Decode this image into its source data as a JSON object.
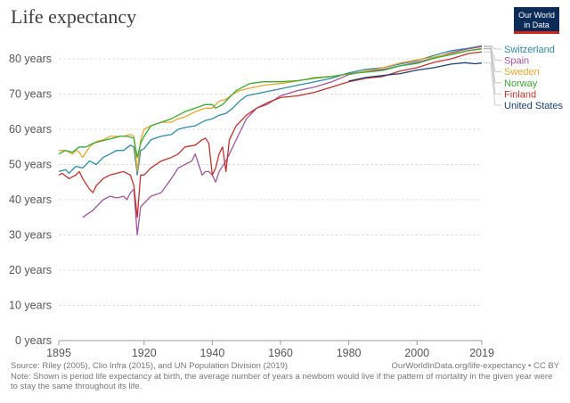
{
  "title": "Life expectancy",
  "logo": {
    "line1": "Our World",
    "line2": "in Data"
  },
  "footer": {
    "source": "Source: Riley (2005), Clio Infra (2015), and UN Population Division (2019)",
    "url": "OurWorldInData.org/life-expectancy • CC BY",
    "note": "Note: Shown is period life expectancy at birth, the average number of years a newborn would live if the pattern of mortality in the given year were to stay the same throughout its life."
  },
  "chart_data": {
    "type": "line",
    "title": "Life expectancy",
    "xlabel": "",
    "ylabel": "",
    "xlim": [
      1895,
      2019
    ],
    "ylim": [
      0,
      80
    ],
    "x_ticks": [
      1895,
      1920,
      1940,
      1960,
      1980,
      2000,
      2019
    ],
    "x_tick_labels": [
      "1895",
      "1920",
      "1940",
      "1960",
      "1980",
      "2000",
      "2019"
    ],
    "y_ticks": [
      0,
      10,
      20,
      30,
      40,
      50,
      60,
      70,
      80
    ],
    "y_tick_labels": [
      "0 years",
      "10 years",
      "20 years",
      "30 years",
      "40 years",
      "50 years",
      "60 years",
      "70 years",
      "80 years"
    ],
    "grid": "horizontal dashed",
    "legend": "right",
    "series": [
      {
        "name": "Switzerland",
        "color": "#2d8aa8",
        "points": [
          [
            1895,
            48
          ],
          [
            1897,
            48.5
          ],
          [
            1898,
            47.5
          ],
          [
            1900,
            49.5
          ],
          [
            1902,
            49
          ],
          [
            1904,
            51
          ],
          [
            1906,
            50
          ],
          [
            1908,
            52
          ],
          [
            1910,
            53
          ],
          [
            1912,
            54
          ],
          [
            1914,
            54
          ],
          [
            1916,
            55.5
          ],
          [
            1917,
            55
          ],
          [
            1918,
            47
          ],
          [
            1919,
            54
          ],
          [
            1920,
            54.5
          ],
          [
            1922,
            57
          ],
          [
            1925,
            58
          ],
          [
            1928,
            58.5
          ],
          [
            1930,
            60
          ],
          [
            1932,
            60.5
          ],
          [
            1935,
            61
          ],
          [
            1938,
            62.5
          ],
          [
            1940,
            63
          ],
          [
            1942,
            64
          ],
          [
            1944,
            64.5
          ],
          [
            1946,
            66
          ],
          [
            1948,
            68
          ],
          [
            1950,
            69.5
          ],
          [
            1955,
            70.5
          ],
          [
            1960,
            71.5
          ],
          [
            1965,
            72.5
          ],
          [
            1970,
            73.5
          ],
          [
            1975,
            74.5
          ],
          [
            1980,
            76
          ],
          [
            1985,
            77
          ],
          [
            1990,
            77.5
          ],
          [
            1995,
            78.5
          ],
          [
            2000,
            79.5
          ],
          [
            2005,
            81
          ],
          [
            2010,
            82.3
          ],
          [
            2015,
            83
          ],
          [
            2019,
            83.7
          ]
        ]
      },
      {
        "name": "Spain",
        "color": "#a2559c",
        "points": [
          [
            1902,
            35
          ],
          [
            1905,
            37
          ],
          [
            1908,
            40
          ],
          [
            1910,
            41
          ],
          [
            1912,
            40.5
          ],
          [
            1914,
            41
          ],
          [
            1915,
            40
          ],
          [
            1916,
            42
          ],
          [
            1917,
            43
          ],
          [
            1918,
            30
          ],
          [
            1919,
            38
          ],
          [
            1920,
            39
          ],
          [
            1922,
            41
          ],
          [
            1925,
            42
          ],
          [
            1928,
            46
          ],
          [
            1930,
            49
          ],
          [
            1932,
            50
          ],
          [
            1934,
            51
          ],
          [
            1935,
            53
          ],
          [
            1936,
            50
          ],
          [
            1937,
            47
          ],
          [
            1938,
            48
          ],
          [
            1939,
            48
          ],
          [
            1940,
            47
          ],
          [
            1941,
            45
          ],
          [
            1942,
            48
          ],
          [
            1944,
            51
          ],
          [
            1946,
            55
          ],
          [
            1948,
            59
          ],
          [
            1950,
            63
          ],
          [
            1953,
            66
          ],
          [
            1956,
            67
          ],
          [
            1960,
            69.5
          ],
          [
            1965,
            71
          ],
          [
            1970,
            72
          ],
          [
            1975,
            73.5
          ],
          [
            1980,
            75.5
          ],
          [
            1985,
            76.5
          ],
          [
            1990,
            77
          ],
          [
            1995,
            78
          ],
          [
            2000,
            79
          ],
          [
            2005,
            80.2
          ],
          [
            2010,
            81.8
          ],
          [
            2015,
            82.8
          ],
          [
            2019,
            83.5
          ]
        ]
      },
      {
        "name": "Sweden",
        "color": "#e5a62f",
        "points": [
          [
            1895,
            54
          ],
          [
            1897,
            54
          ],
          [
            1898,
            53.5
          ],
          [
            1899,
            53
          ],
          [
            1900,
            54
          ],
          [
            1901,
            53.5
          ],
          [
            1902,
            52
          ],
          [
            1904,
            55
          ],
          [
            1906,
            56.5
          ],
          [
            1908,
            57
          ],
          [
            1910,
            58
          ],
          [
            1912,
            58
          ],
          [
            1914,
            58
          ],
          [
            1916,
            58.5
          ],
          [
            1917,
            58
          ],
          [
            1918,
            48
          ],
          [
            1919,
            57
          ],
          [
            1920,
            60
          ],
          [
            1922,
            61
          ],
          [
            1925,
            62
          ],
          [
            1928,
            62
          ],
          [
            1930,
            63
          ],
          [
            1932,
            63.5
          ],
          [
            1935,
            65
          ],
          [
            1938,
            66
          ],
          [
            1940,
            66
          ],
          [
            1942,
            68
          ],
          [
            1944,
            68.5
          ],
          [
            1946,
            70
          ],
          [
            1948,
            71
          ],
          [
            1950,
            71.5
          ],
          [
            1955,
            72.5
          ],
          [
            1960,
            73
          ],
          [
            1965,
            73.7
          ],
          [
            1970,
            74.7
          ],
          [
            1975,
            75
          ],
          [
            1980,
            75.7
          ],
          [
            1985,
            76.5
          ],
          [
            1990,
            77.5
          ],
          [
            1995,
            78.8
          ],
          [
            2000,
            79.7
          ],
          [
            2005,
            80.5
          ],
          [
            2010,
            81.5
          ],
          [
            2015,
            82.3
          ],
          [
            2019,
            83
          ]
        ]
      },
      {
        "name": "Norway",
        "color": "#3aaa35",
        "points": [
          [
            1895,
            53
          ],
          [
            1897,
            54
          ],
          [
            1899,
            53.5
          ],
          [
            1901,
            55
          ],
          [
            1903,
            55
          ],
          [
            1905,
            56
          ],
          [
            1907,
            56.5
          ],
          [
            1909,
            57
          ],
          [
            1911,
            57.5
          ],
          [
            1913,
            58
          ],
          [
            1915,
            58
          ],
          [
            1917,
            57.5
          ],
          [
            1918,
            52
          ],
          [
            1919,
            56
          ],
          [
            1920,
            58
          ],
          [
            1922,
            61
          ],
          [
            1925,
            62
          ],
          [
            1928,
            63
          ],
          [
            1930,
            64
          ],
          [
            1932,
            65
          ],
          [
            1935,
            66
          ],
          [
            1938,
            67
          ],
          [
            1940,
            67
          ],
          [
            1941,
            66
          ],
          [
            1943,
            67
          ],
          [
            1945,
            69
          ],
          [
            1947,
            71
          ],
          [
            1949,
            72
          ],
          [
            1951,
            73
          ],
          [
            1955,
            73.5
          ],
          [
            1960,
            73.5
          ],
          [
            1965,
            73.8
          ],
          [
            1970,
            74.5
          ],
          [
            1975,
            75
          ],
          [
            1980,
            75.8
          ],
          [
            1985,
            76.2
          ],
          [
            1990,
            76.7
          ],
          [
            1995,
            78
          ],
          [
            2000,
            78.7
          ],
          [
            2005,
            80.2
          ],
          [
            2010,
            81.2
          ],
          [
            2015,
            82.3
          ],
          [
            2019,
            82.8
          ]
        ]
      },
      {
        "name": "Finland",
        "color": "#c4312a",
        "points": [
          [
            1895,
            47
          ],
          [
            1896,
            47.5
          ],
          [
            1898,
            46
          ],
          [
            1900,
            47
          ],
          [
            1901,
            48
          ],
          [
            1902,
            46
          ],
          [
            1904,
            43
          ],
          [
            1905,
            42
          ],
          [
            1906,
            44
          ],
          [
            1908,
            46
          ],
          [
            1910,
            47
          ],
          [
            1912,
            47.5
          ],
          [
            1914,
            48
          ],
          [
            1916,
            47
          ],
          [
            1917,
            44
          ],
          [
            1918,
            35
          ],
          [
            1919,
            47
          ],
          [
            1920,
            47
          ],
          [
            1922,
            49
          ],
          [
            1925,
            51
          ],
          [
            1928,
            52
          ],
          [
            1930,
            53
          ],
          [
            1932,
            55
          ],
          [
            1935,
            55.5
          ],
          [
            1937,
            57
          ],
          [
            1938,
            57.5
          ],
          [
            1939,
            56
          ],
          [
            1940,
            47
          ],
          [
            1941,
            49
          ],
          [
            1942,
            53
          ],
          [
            1943,
            55
          ],
          [
            1944,
            48
          ],
          [
            1945,
            57
          ],
          [
            1947,
            61
          ],
          [
            1950,
            64
          ],
          [
            1953,
            66
          ],
          [
            1956,
            67.5
          ],
          [
            1960,
            69
          ],
          [
            1965,
            69.5
          ],
          [
            1970,
            70.5
          ],
          [
            1975,
            72
          ],
          [
            1980,
            73.5
          ],
          [
            1985,
            74.5
          ],
          [
            1990,
            75
          ],
          [
            1995,
            76.5
          ],
          [
            2000,
            77.5
          ],
          [
            2005,
            79
          ],
          [
            2010,
            80
          ],
          [
            2015,
            81.5
          ],
          [
            2019,
            82
          ]
        ]
      },
      {
        "name": "United States",
        "color": "#1a3f73",
        "points": [
          [
            1980,
            73.7
          ],
          [
            1985,
            74.7
          ],
          [
            1990,
            75.3
          ],
          [
            1995,
            75.8
          ],
          [
            2000,
            76.8
          ],
          [
            2005,
            77.5
          ],
          [
            2010,
            78.5
          ],
          [
            2014,
            78.9
          ],
          [
            2017,
            78.6
          ],
          [
            2019,
            78.8
          ]
        ]
      }
    ]
  }
}
